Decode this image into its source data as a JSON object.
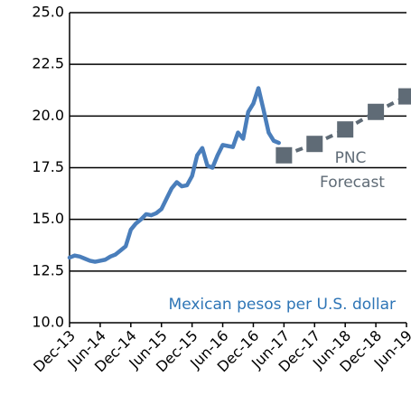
{
  "chart_data": {
    "type": "line",
    "annotations": [
      "PNC",
      "Forecast",
      "Mexican pesos per U.S. dollar"
    ],
    "categories": [
      "Dec-13",
      null,
      null,
      null,
      null,
      null,
      "Jun-14",
      null,
      null,
      null,
      null,
      null,
      "Dec-14",
      null,
      null,
      null,
      null,
      null,
      "Jun-15",
      null,
      null,
      null,
      null,
      null,
      "Dec-15",
      null,
      null,
      null,
      null,
      null,
      "Jun-16",
      null,
      null,
      null,
      null,
      null,
      "Dec-16",
      null,
      null,
      null,
      null,
      null,
      "Jun-17",
      null,
      null,
      null,
      null,
      null,
      "Dec-17",
      null,
      null,
      null,
      null,
      null,
      "Jun-18",
      null,
      null,
      null,
      null,
      null,
      "Dec-18",
      null,
      null,
      null,
      null,
      null,
      "Jun-19"
    ],
    "series": [
      {
        "color": "#4a7ebb",
        "values": [
          13.15,
          13.25,
          13.2,
          13.1,
          13.0,
          12.95,
          13.0,
          13.05,
          13.2,
          13.3,
          13.5,
          13.7,
          14.5,
          14.8,
          15.0,
          15.25,
          15.2,
          15.3,
          15.5,
          16.0,
          16.5,
          16.8,
          16.6,
          16.65,
          17.1,
          18.1,
          18.45,
          17.6,
          17.5,
          18.1,
          18.6,
          18.55,
          18.5,
          19.2,
          18.9,
          20.2,
          20.6,
          21.35,
          20.3,
          19.2,
          18.8,
          18.7,
          null,
          null,
          null,
          null,
          null,
          null,
          null,
          null,
          null,
          null,
          null,
          null,
          null,
          null,
          null,
          null,
          null,
          null,
          null,
          null,
          null,
          null,
          null,
          null,
          null
        ]
      },
      {
        "color": "#5f6b76",
        "style": "dashed-markers",
        "values": [
          null,
          null,
          null,
          null,
          null,
          null,
          null,
          null,
          null,
          null,
          null,
          null,
          null,
          null,
          null,
          null,
          null,
          null,
          null,
          null,
          null,
          null,
          null,
          null,
          null,
          null,
          null,
          null,
          null,
          null,
          null,
          null,
          null,
          null,
          null,
          null,
          null,
          null,
          null,
          null,
          null,
          null,
          18.1,
          null,
          null,
          null,
          null,
          null,
          18.65,
          null,
          null,
          null,
          null,
          null,
          19.35,
          null,
          null,
          null,
          null,
          null,
          20.2,
          null,
          null,
          null,
          null,
          null,
          20.95
        ]
      }
    ],
    "ylim": [
      10,
      25
    ],
    "yticks": [
      {
        "value": 10,
        "label": "10.0"
      },
      12.5,
      {
        "value": 15,
        "label": "15.0"
      },
      17.5,
      {
        "value": 20,
        "label": "20.0"
      },
      22.5,
      {
        "value": 25,
        "label": "25.0"
      }
    ],
    "grid": true
  }
}
